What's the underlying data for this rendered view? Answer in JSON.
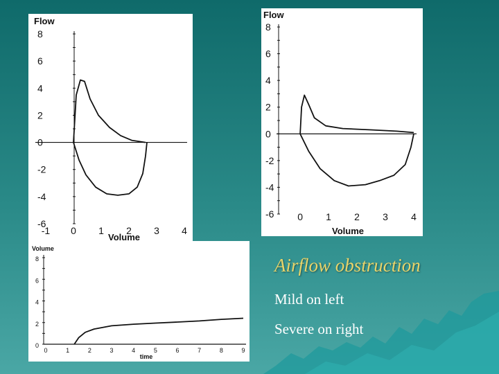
{
  "colors": {
    "ink": "#111111",
    "caption_title": "#e8d46a",
    "caption_text": "#ffffff",
    "mountain": "#1f9a9c"
  },
  "caption": {
    "title": "Airflow obstruction",
    "line1": "Mild on left",
    "line2": "Severe on right"
  },
  "chart_data": [
    {
      "type": "line",
      "ylabel": "Flow",
      "xlabel": "Volume",
      "xlim": [
        -1,
        4
      ],
      "ylim": [
        -6,
        8
      ],
      "xticks": [
        -1,
        0,
        1,
        2,
        3,
        4
      ],
      "yticks": [
        8,
        6,
        4,
        2,
        0,
        -2,
        -4,
        -6
      ],
      "series": [
        {
          "points": [
            [
              0,
              0
            ],
            [
              0.1,
              3.5
            ],
            [
              0.25,
              4.6
            ],
            [
              0.4,
              4.5
            ],
            [
              0.6,
              3.2
            ],
            [
              0.9,
              2.0
            ],
            [
              1.3,
              1.1
            ],
            [
              1.7,
              0.5
            ],
            [
              2.1,
              0.15
            ],
            [
              2.6,
              0
            ]
          ]
        },
        {
          "points": [
            [
              0,
              0
            ],
            [
              0.2,
              -1.3
            ],
            [
              0.45,
              -2.4
            ],
            [
              0.8,
              -3.3
            ],
            [
              1.2,
              -3.8
            ],
            [
              1.6,
              -3.9
            ],
            [
              2.0,
              -3.8
            ],
            [
              2.3,
              -3.3
            ],
            [
              2.5,
              -2.3
            ],
            [
              2.6,
              -1.0
            ],
            [
              2.65,
              0
            ]
          ]
        }
      ]
    },
    {
      "type": "line",
      "ylabel": "Flow",
      "xlabel": "Volume",
      "xlim": [
        -0.1,
        4
      ],
      "ylim": [
        -6,
        8
      ],
      "xticks": [
        0,
        1,
        2,
        3,
        4
      ],
      "yticks": [
        8,
        6,
        4,
        2,
        0,
        -2,
        -4,
        -6
      ],
      "series": [
        {
          "points": [
            [
              0,
              0
            ],
            [
              0.05,
              2.0
            ],
            [
              0.15,
              2.9
            ],
            [
              0.3,
              2.2
            ],
            [
              0.5,
              1.2
            ],
            [
              0.9,
              0.6
            ],
            [
              1.5,
              0.4
            ],
            [
              2.5,
              0.3
            ],
            [
              3.4,
              0.2
            ],
            [
              4.0,
              0.1
            ]
          ]
        },
        {
          "points": [
            [
              0,
              0
            ],
            [
              0.3,
              -1.3
            ],
            [
              0.7,
              -2.6
            ],
            [
              1.2,
              -3.5
            ],
            [
              1.7,
              -3.9
            ],
            [
              2.3,
              -3.8
            ],
            [
              2.8,
              -3.5
            ],
            [
              3.3,
              -3.1
            ],
            [
              3.7,
              -2.3
            ],
            [
              3.9,
              -1.0
            ],
            [
              4.0,
              0
            ]
          ]
        }
      ]
    },
    {
      "type": "line",
      "ylabel": "Volume",
      "xlabel": "time",
      "xlim": [
        0,
        9
      ],
      "ylim": [
        0,
        8
      ],
      "xticks": [
        0,
        1,
        2,
        3,
        4,
        5,
        6,
        7,
        8,
        9
      ],
      "yticks": [
        8,
        6,
        4,
        2,
        0
      ],
      "series": [
        {
          "points": [
            [
              1.3,
              0
            ],
            [
              1.5,
              0.6
            ],
            [
              1.8,
              1.1
            ],
            [
              2.2,
              1.4
            ],
            [
              3,
              1.7
            ],
            [
              4,
              1.85
            ],
            [
              5,
              1.95
            ],
            [
              6,
              2.05
            ],
            [
              7,
              2.15
            ],
            [
              8,
              2.3
            ],
            [
              9,
              2.4
            ]
          ]
        }
      ]
    }
  ]
}
